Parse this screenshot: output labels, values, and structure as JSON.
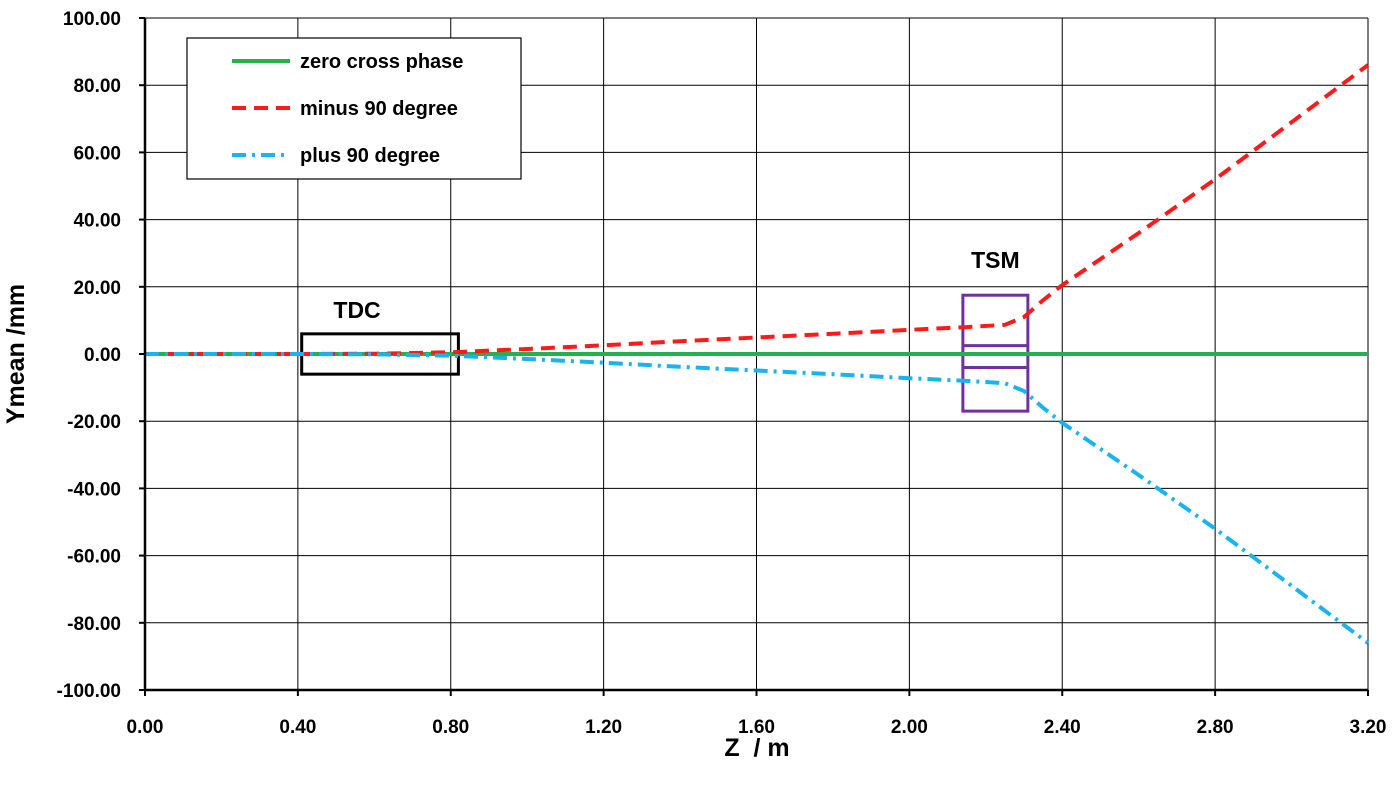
{
  "chart_data": {
    "type": "line",
    "title": "",
    "xlabel": "Z  / m",
    "ylabel": "Ymean /mm",
    "xlim": [
      0,
      3.2
    ],
    "ylim": [
      -100,
      100
    ],
    "grid": true,
    "legend_position": "top-left",
    "x_ticks": [
      "0.00",
      "0.40",
      "0.80",
      "1.20",
      "1.60",
      "2.00",
      "2.40",
      "2.80",
      "3.20"
    ],
    "y_ticks": [
      "100.00",
      "80.00",
      "60.00",
      "40.00",
      "20.00",
      "0.00",
      "-20.00",
      "-40.00",
      "-60.00",
      "-80.00",
      "-100.00"
    ],
    "series": [
      {
        "name": "zero cross phase",
        "color": "#22b14c",
        "style": "solid",
        "points": [
          [
            0,
            0
          ],
          [
            3.2,
            0
          ]
        ]
      },
      {
        "name": "minus 90 degree",
        "color": "#ff1a1a",
        "style": "dashed",
        "points": [
          [
            0,
            0
          ],
          [
            0.4,
            0
          ],
          [
            0.6,
            0.1
          ],
          [
            0.8,
            0.5
          ],
          [
            1.0,
            1.5
          ],
          [
            1.2,
            2.6
          ],
          [
            1.4,
            3.8
          ],
          [
            1.6,
            4.9
          ],
          [
            1.8,
            6.0
          ],
          [
            2.0,
            7.2
          ],
          [
            2.15,
            8.0
          ],
          [
            2.25,
            8.7
          ],
          [
            2.3,
            11
          ],
          [
            2.35,
            16
          ],
          [
            2.4,
            20.5
          ],
          [
            2.6,
            36
          ],
          [
            2.8,
            52
          ],
          [
            3.0,
            69
          ],
          [
            3.2,
            86
          ]
        ]
      },
      {
        "name": "plus 90 degree",
        "color": "#19b3f0",
        "style": "dashdot",
        "points": [
          [
            0,
            0
          ],
          [
            0.4,
            0
          ],
          [
            0.6,
            -0.1
          ],
          [
            0.8,
            -0.5
          ],
          [
            1.0,
            -1.5
          ],
          [
            1.2,
            -2.6
          ],
          [
            1.4,
            -3.8
          ],
          [
            1.6,
            -4.9
          ],
          [
            1.8,
            -6.0
          ],
          [
            2.0,
            -7.2
          ],
          [
            2.15,
            -8.0
          ],
          [
            2.25,
            -8.7
          ],
          [
            2.3,
            -11
          ],
          [
            2.35,
            -16
          ],
          [
            2.4,
            -20.5
          ],
          [
            2.6,
            -36
          ],
          [
            2.8,
            -52
          ],
          [
            3.0,
            -69
          ],
          [
            3.2,
            -86
          ]
        ]
      }
    ],
    "annotations": [
      {
        "label": "TDC",
        "color": "#000000",
        "x_range": [
          0.41,
          0.82
        ],
        "y_range": [
          -6,
          6
        ]
      },
      {
        "label": "TSM",
        "color": "#7030a0",
        "x_range": [
          2.14,
          2.31
        ],
        "y_range": [
          -17,
          17.5
        ],
        "dividers": [
          2.5,
          -4
        ]
      }
    ]
  }
}
